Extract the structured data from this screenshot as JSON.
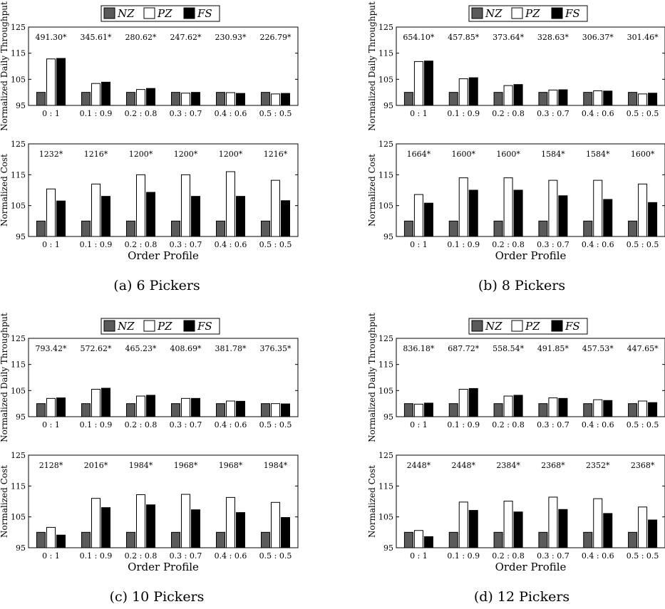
{
  "legend": {
    "entries": [
      "NZ",
      "PZ",
      "FS"
    ],
    "colors": {
      "NZ": "#5a5a5a",
      "PZ": "#ffffff",
      "FS": "#000000"
    }
  },
  "xlabel": "Order Profile",
  "categories": [
    "0 : 1",
    "0.1 : 0.9",
    "0.2 : 0.8",
    "0.3 : 0.7",
    "0.4 : 0.6",
    "0.5 : 0.5"
  ],
  "captions": [
    "(a) 6 Pickers",
    "(b) 8 Pickers",
    "(c) 10 Pickers",
    "(d) 12 Pickers"
  ],
  "chart_data": [
    {
      "type": "bar",
      "panel": "a",
      "ylabel": "Normalized Daily Throughput",
      "ylim": [
        95,
        125
      ],
      "yticks": [
        95,
        105,
        115,
        125
      ],
      "categories": [
        "0 : 1",
        "0.1 : 0.9",
        "0.2 : 0.8",
        "0.3 : 0.7",
        "0.4 : 0.6",
        "0.5 : 0.5"
      ],
      "annotations": [
        "491.30*",
        "345.61*",
        "280.62*",
        "247.62*",
        "230.93*",
        "226.79*"
      ],
      "series": [
        {
          "name": "NZ",
          "values": [
            100,
            100,
            100,
            100,
            100,
            100
          ]
        },
        {
          "name": "PZ",
          "values": [
            112.8,
            103.4,
            101.1,
            99.7,
            99.9,
            99.4
          ]
        },
        {
          "name": "FS",
          "values": [
            113.0,
            103.9,
            101.5,
            100.0,
            99.6,
            99.6
          ]
        }
      ]
    },
    {
      "type": "bar",
      "panel": "a",
      "ylabel": "Normalized Cost",
      "ylim": [
        95,
        125
      ],
      "yticks": [
        95,
        105,
        115,
        125
      ],
      "categories": [
        "0 : 1",
        "0.1 : 0.9",
        "0.2 : 0.8",
        "0.3 : 0.7",
        "0.4 : 0.6",
        "0.5 : 0.5"
      ],
      "annotations": [
        "1232*",
        "1216*",
        "1200*",
        "1200*",
        "1200*",
        "1216*"
      ],
      "series": [
        {
          "name": "NZ",
          "values": [
            100,
            100,
            100,
            100,
            100,
            100
          ]
        },
        {
          "name": "PZ",
          "values": [
            110.4,
            112.0,
            115.0,
            115.0,
            116.0,
            113.2
          ]
        },
        {
          "name": "FS",
          "values": [
            106.5,
            108.0,
            109.3,
            108.0,
            108.0,
            106.6
          ]
        }
      ]
    },
    {
      "type": "bar",
      "panel": "b",
      "ylabel": "Normalized Daily Throughput",
      "ylim": [
        95,
        125
      ],
      "yticks": [
        95,
        105,
        115,
        125
      ],
      "categories": [
        "0 : 1",
        "0.1 : 0.9",
        "0.2 : 0.8",
        "0.3 : 0.7",
        "0.4 : 0.6",
        "0.5 : 0.5"
      ],
      "annotations": [
        "654.10*",
        "457.85*",
        "373.64*",
        "328.63*",
        "306.37*",
        "301.46*"
      ],
      "series": [
        {
          "name": "NZ",
          "values": [
            100,
            100,
            100,
            100,
            100,
            100
          ]
        },
        {
          "name": "PZ",
          "values": [
            111.8,
            105.2,
            102.6,
            100.9,
            100.6,
            99.4
          ]
        },
        {
          "name": "FS",
          "values": [
            112.0,
            105.6,
            103.0,
            101.0,
            100.5,
            99.7
          ]
        }
      ]
    },
    {
      "type": "bar",
      "panel": "b",
      "ylabel": "Normalized Cost",
      "ylim": [
        95,
        125
      ],
      "yticks": [
        95,
        105,
        115,
        125
      ],
      "categories": [
        "0 : 1",
        "0.1 : 0.9",
        "0.2 : 0.8",
        "0.3 : 0.7",
        "0.4 : 0.6",
        "0.5 : 0.5"
      ],
      "annotations": [
        "1664*",
        "1600*",
        "1600*",
        "1584*",
        "1584*",
        "1600*"
      ],
      "series": [
        {
          "name": "NZ",
          "values": [
            100,
            100,
            100,
            100,
            100,
            100
          ]
        },
        {
          "name": "PZ",
          "values": [
            108.6,
            114.0,
            114.0,
            113.2,
            113.2,
            112.0
          ]
        },
        {
          "name": "FS",
          "values": [
            105.8,
            110.0,
            110.0,
            108.2,
            107.0,
            106.0
          ]
        }
      ]
    },
    {
      "type": "bar",
      "panel": "c",
      "ylabel": "Normalized Daily Throughput",
      "ylim": [
        95,
        125
      ],
      "yticks": [
        95,
        105,
        115,
        125
      ],
      "categories": [
        "0 : 1",
        "0.1 : 0.9",
        "0.2 : 0.8",
        "0.3 : 0.7",
        "0.4 : 0.6",
        "0.5 : 0.5"
      ],
      "annotations": [
        "793.42*",
        "572.62*",
        "465.23*",
        "408.69*",
        "381.78*",
        "376.35*"
      ],
      "series": [
        {
          "name": "NZ",
          "values": [
            100,
            100,
            100,
            100,
            100,
            100
          ]
        },
        {
          "name": "PZ",
          "values": [
            102.0,
            105.5,
            102.9,
            102.0,
            101.0,
            100.0
          ]
        },
        {
          "name": "FS",
          "values": [
            102.2,
            105.9,
            103.2,
            102.0,
            100.9,
            99.9
          ]
        }
      ]
    },
    {
      "type": "bar",
      "panel": "c",
      "ylabel": "Normalized Cost",
      "ylim": [
        95,
        125
      ],
      "yticks": [
        95,
        105,
        115,
        125
      ],
      "categories": [
        "0 : 1",
        "0.1 : 0.9",
        "0.2 : 0.8",
        "0.3 : 0.7",
        "0.4 : 0.6",
        "0.5 : 0.5"
      ],
      "annotations": [
        "2128*",
        "2016*",
        "1984*",
        "1968*",
        "1968*",
        "1984*"
      ],
      "series": [
        {
          "name": "NZ",
          "values": [
            100,
            100,
            100,
            100,
            100,
            100
          ]
        },
        {
          "name": "PZ",
          "values": [
            101.6,
            111.0,
            112.2,
            112.3,
            111.3,
            109.7
          ]
        },
        {
          "name": "FS",
          "values": [
            99.1,
            108.0,
            108.9,
            107.3,
            106.4,
            104.8
          ]
        }
      ]
    },
    {
      "type": "bar",
      "panel": "d",
      "ylabel": "Normalized Daily Throughput",
      "ylim": [
        95,
        125
      ],
      "yticks": [
        95,
        105,
        115,
        125
      ],
      "categories": [
        "0 : 1",
        "0.1 : 0.9",
        "0.2 : 0.8",
        "0.3 : 0.7",
        "0.4 : 0.6",
        "0.5 : 0.5"
      ],
      "annotations": [
        "836.18*",
        "687.72*",
        "558.54*",
        "491.85*",
        "457.53*",
        "447.65*"
      ],
      "series": [
        {
          "name": "NZ",
          "values": [
            100,
            100,
            100,
            100,
            100,
            100
          ]
        },
        {
          "name": "PZ",
          "values": [
            99.8,
            105.5,
            102.9,
            102.2,
            101.5,
            101.0
          ]
        },
        {
          "name": "FS",
          "values": [
            100.2,
            105.8,
            103.2,
            102.0,
            101.2,
            100.4
          ]
        }
      ]
    },
    {
      "type": "bar",
      "panel": "d",
      "ylabel": "Normalized Cost",
      "ylim": [
        95,
        125
      ],
      "yticks": [
        95,
        105,
        115,
        125
      ],
      "categories": [
        "0 : 1",
        "0.1 : 0.9",
        "0.2 : 0.8",
        "0.3 : 0.7",
        "0.4 : 0.6",
        "0.5 : 0.5"
      ],
      "annotations": [
        "2448*",
        "2448*",
        "2384*",
        "2368*",
        "2352*",
        "2368*"
      ],
      "series": [
        {
          "name": "NZ",
          "values": [
            100,
            100,
            100,
            100,
            100,
            100
          ]
        },
        {
          "name": "PZ",
          "values": [
            100.6,
            109.8,
            110.1,
            111.4,
            110.9,
            108.2
          ]
        },
        {
          "name": "FS",
          "values": [
            98.6,
            107.1,
            106.6,
            107.4,
            106.1,
            104.0
          ]
        }
      ]
    }
  ]
}
